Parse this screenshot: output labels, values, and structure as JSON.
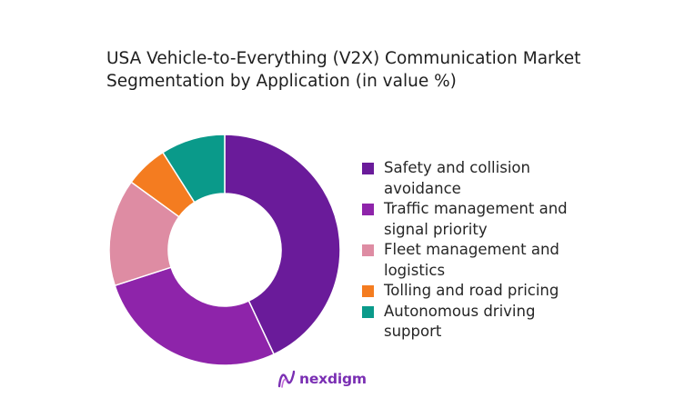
{
  "chart_data": {
    "type": "pie",
    "variant": "donut",
    "title_lines": [
      "USA Vehicle-to-Everything (V2X) Communication Market",
      "Segmentation by Application (in value %)"
    ],
    "categories": [
      "Safety and collision avoidance",
      "Traffic management and signal priority",
      "Fleet management and logistics",
      "Tolling and road pricing",
      "Autonomous driving support"
    ],
    "values": [
      43,
      27,
      15,
      6,
      9
    ],
    "colors": [
      "#6a1b9a",
      "#8e24aa",
      "#de8ca3",
      "#f47c20",
      "#0a9a8a"
    ],
    "legend_placement": "right"
  },
  "legend": {
    "lines": [
      [
        "Safety and collision",
        "avoidance"
      ],
      [
        "Traffic management and",
        "signal priority"
      ],
      [
        "Fleet management and",
        "logistics"
      ],
      [
        "Tolling and road pricing"
      ],
      [
        "Autonomous driving",
        "support"
      ]
    ]
  },
  "branding": {
    "logo_text": "nexdigm",
    "logo_color": "#7a2fb3"
  }
}
